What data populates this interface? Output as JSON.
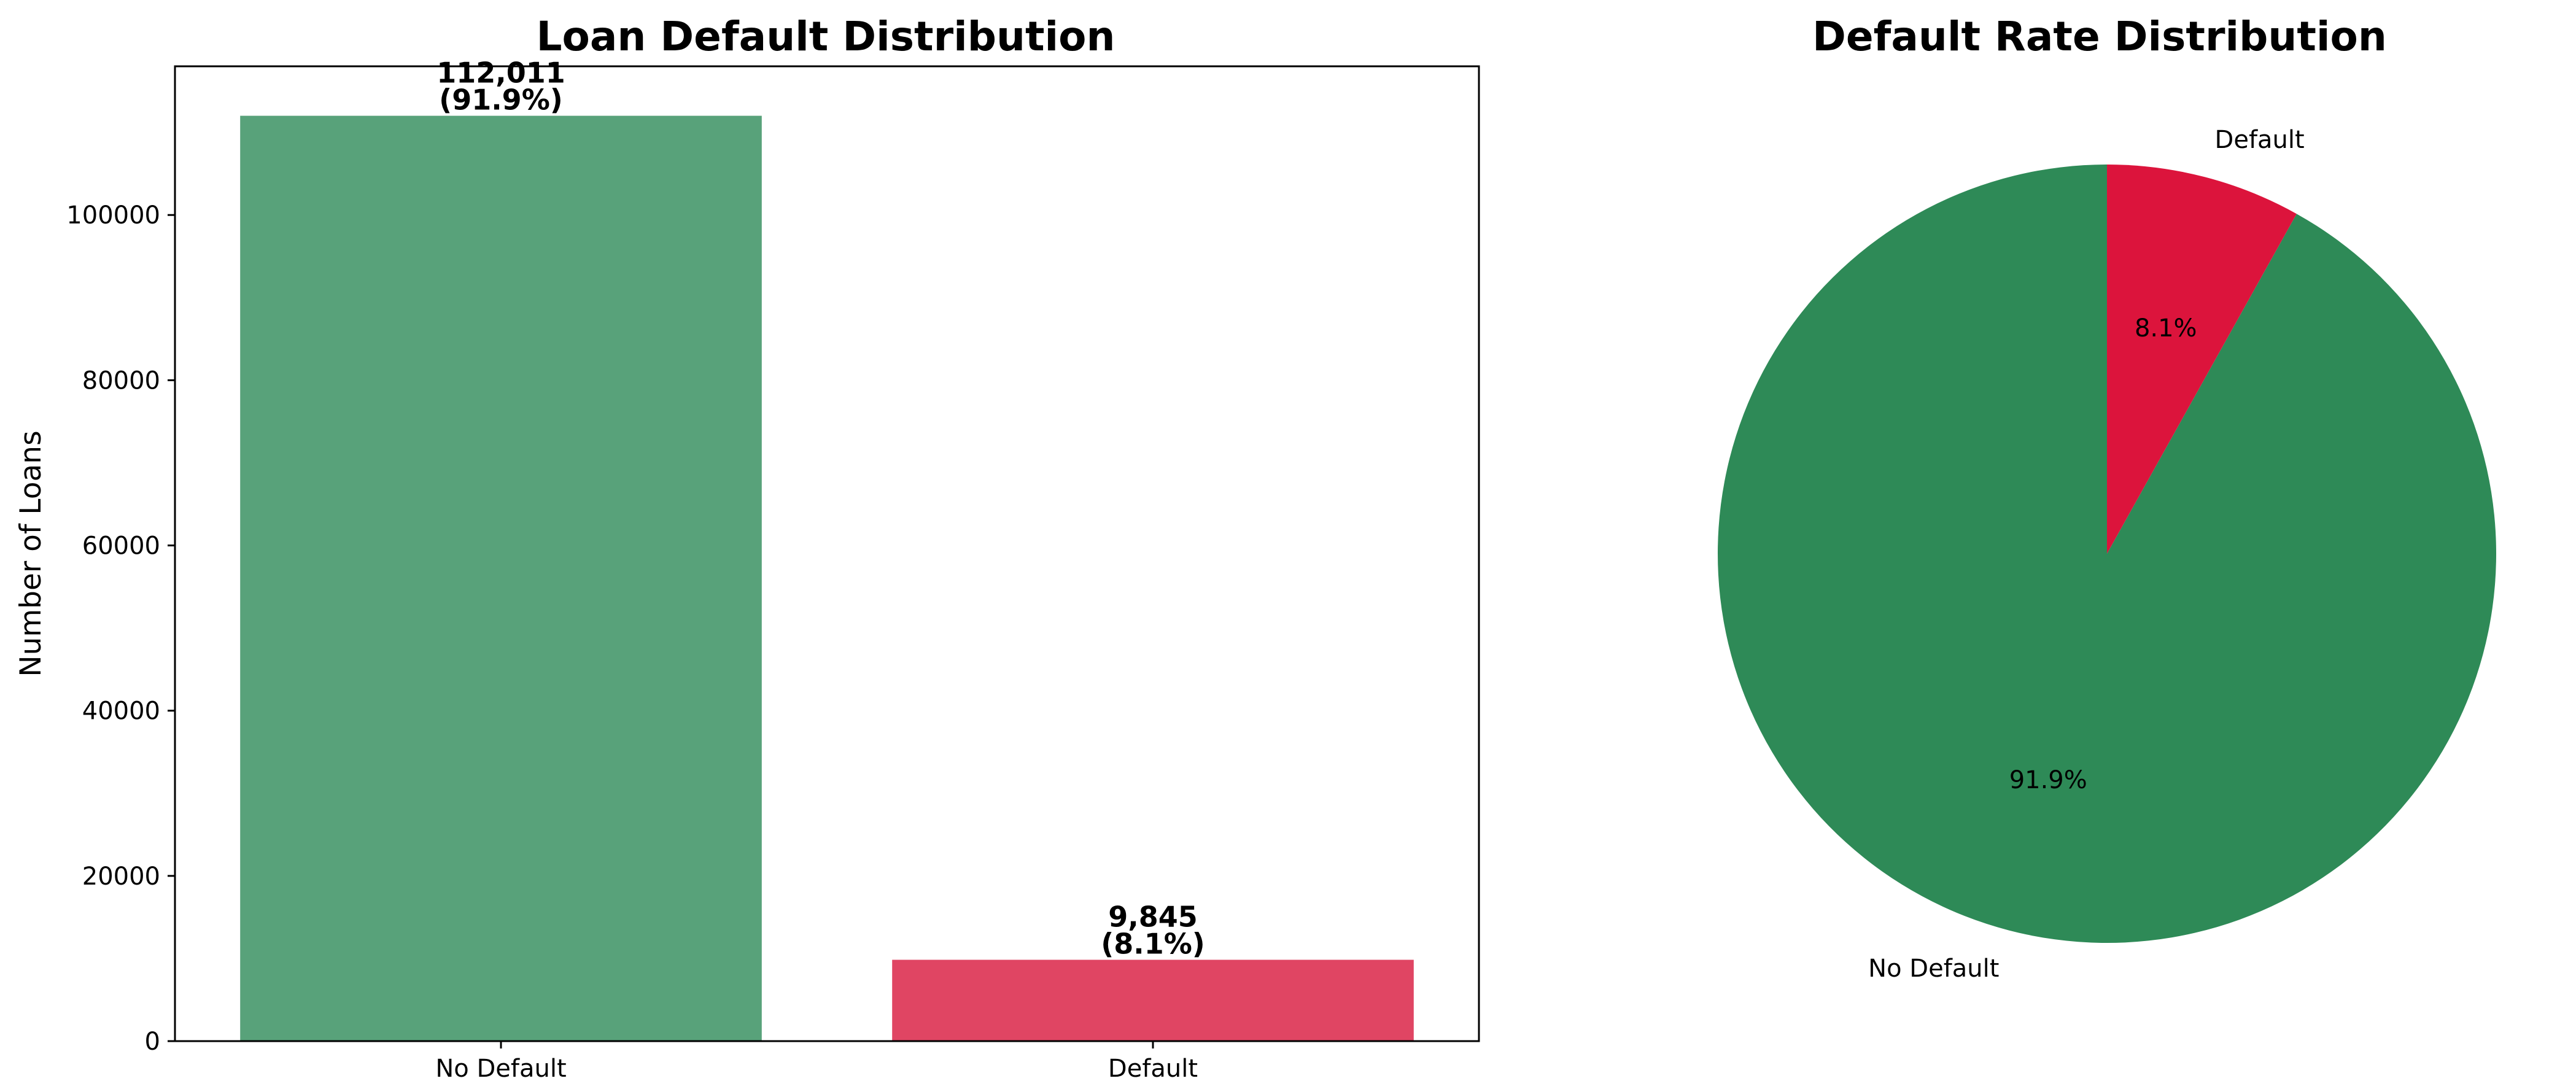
{
  "chart_data": [
    {
      "type": "bar",
      "title": "Loan Default Distribution",
      "xlabel": "",
      "ylabel": "Number of Loans",
      "categories": [
        "No Default",
        "Default"
      ],
      "values": [
        112011,
        9845
      ],
      "value_labels": [
        "112,011",
        "9,845"
      ],
      "percent_labels": [
        "(91.9%)",
        "(8.1%)"
      ],
      "colors": [
        "#58a27a",
        "#e04563"
      ],
      "ylim": [
        0,
        118000
      ],
      "yticks": [
        0,
        20000,
        40000,
        60000,
        80000,
        100000
      ],
      "ytick_labels": [
        "0",
        "20000",
        "40000",
        "60000",
        "80000",
        "100000"
      ],
      "grid": false
    },
    {
      "type": "pie",
      "title": "Default Rate Distribution",
      "labels": [
        "No Default",
        "Default"
      ],
      "values": [
        91.9,
        8.1
      ],
      "percent_labels": [
        "91.9%",
        "8.1%"
      ],
      "colors": [
        "#2e8a57",
        "#dc143c"
      ],
      "start_angle_deg": 90,
      "direction": "counterclockwise"
    }
  ]
}
